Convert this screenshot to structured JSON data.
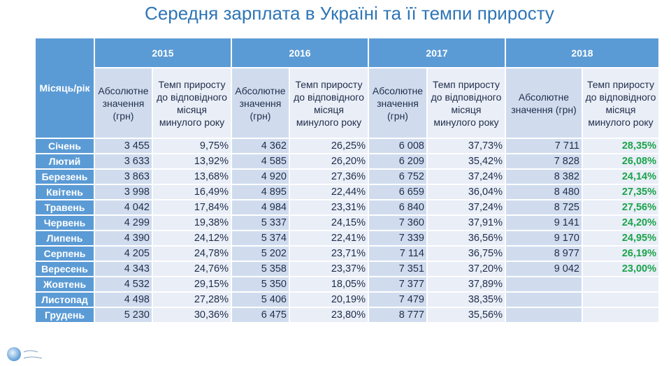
{
  "title": "Середня зарплата в Україні та її темпи приросту",
  "chart_data": {
    "type": "table",
    "title": "Середня зарплата в Україні та її темпи приросту",
    "row_header": "Місяць/рік",
    "years": [
      "2015",
      "2016",
      "2017",
      "2018"
    ],
    "subheaders": {
      "absolute": "Абсолютне значення (грн)",
      "growth": "Темп приросту до відповідного місяця минулого року"
    },
    "highlight_color": "#1aa34a",
    "highlight_column": "2018 growth",
    "rows": [
      {
        "month": "Січень",
        "values": [
          "3 455",
          "9,75%",
          "4 362",
          "26,25%",
          "6 008",
          "37,73%",
          "7 711",
          "28,35%"
        ]
      },
      {
        "month": "Лютий",
        "values": [
          "3 633",
          "13,92%",
          "4 585",
          "26,20%",
          "6 209",
          "35,42%",
          "7 828",
          "26,08%"
        ]
      },
      {
        "month": "Березень",
        "values": [
          "3 863",
          "13,68%",
          "4 920",
          "27,36%",
          "6 752",
          "37,24%",
          "8 382",
          "24,14%"
        ]
      },
      {
        "month": "Квітень",
        "values": [
          "3 998",
          "16,49%",
          "4 895",
          "22,44%",
          "6 659",
          "36,04%",
          "8 480",
          "27,35%"
        ]
      },
      {
        "month": "Травень",
        "values": [
          "4 042",
          "17,84%",
          "4 984",
          "23,31%",
          "6 840",
          "37,24%",
          "8 725",
          "27,56%"
        ]
      },
      {
        "month": "Червень",
        "values": [
          "4 299",
          "19,38%",
          "5 337",
          "24,15%",
          "7 360",
          "37,91%",
          "9 141",
          "24,20%"
        ]
      },
      {
        "month": "Липень",
        "values": [
          "4 390",
          "24,12%",
          "5 374",
          "22,41%",
          "7 339",
          "36,56%",
          "9 170",
          "24,95%"
        ]
      },
      {
        "month": "Серпень",
        "values": [
          "4 205",
          "24,78%",
          "5 202",
          "23,71%",
          "7 114",
          "36,75%",
          "8 977",
          "26,19%"
        ]
      },
      {
        "month": "Вересень",
        "values": [
          "4 343",
          "24,76%",
          "5 358",
          "23,37%",
          "7 351",
          "37,20%",
          "9 042",
          "23,00%"
        ]
      },
      {
        "month": "Жовтень",
        "values": [
          "4 532",
          "29,15%",
          "5 350",
          "18,05%",
          "7 377",
          "37,89%",
          "",
          ""
        ]
      },
      {
        "month": "Листопад",
        "values": [
          "4 498",
          "27,28%",
          "5 406",
          "20,19%",
          "7 479",
          "38,35%",
          "",
          ""
        ]
      },
      {
        "month": "Грудень",
        "values": [
          "5 230",
          "30,36%",
          "6 475",
          "23,80%",
          "8 777",
          "35,56%",
          "",
          ""
        ]
      }
    ]
  },
  "logo": {
    "text": "Ukrainian Companies"
  }
}
